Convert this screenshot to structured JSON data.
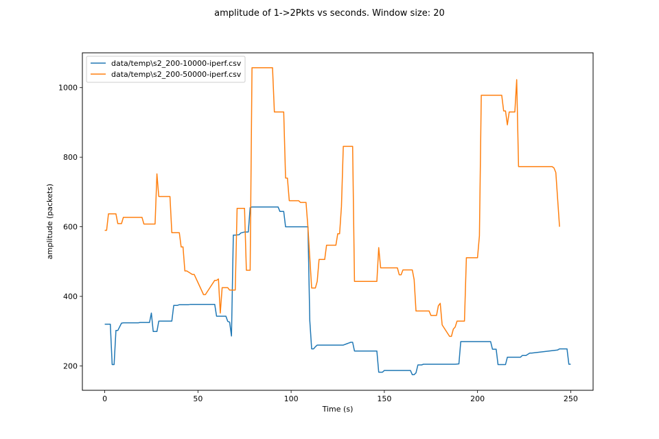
{
  "chart_data": {
    "type": "line",
    "title": "amplitude of 1->2Pkts vs seconds. Window size: 20",
    "xlabel": "Time (s)",
    "ylabel": "amplitude (packets)",
    "xlim": [
      -12,
      262
    ],
    "ylim": [
      130,
      1100
    ],
    "xticks": [
      0,
      50,
      100,
      150,
      200,
      250
    ],
    "yticks": [
      200,
      400,
      600,
      800,
      1000
    ],
    "legend_position": "top-left",
    "grid": false,
    "series": [
      {
        "name": "data/temp\\s2_200-10000-iperf.csv",
        "color": "#1f77b4",
        "x": [
          0,
          3,
          4,
          5,
          6,
          7,
          9,
          10,
          18,
          19,
          24,
          25,
          26,
          28,
          29,
          36,
          37,
          39,
          40,
          45,
          46,
          59,
          60,
          65,
          66,
          67,
          68,
          69,
          70,
          72,
          73,
          75,
          77,
          78,
          79,
          93,
          94,
          96,
          97,
          109,
          110,
          111,
          112,
          113,
          114,
          128,
          130,
          132,
          133,
          134,
          146,
          147,
          149,
          150,
          164,
          165,
          166,
          167,
          168,
          170,
          171,
          172,
          188,
          190,
          191,
          207,
          208,
          210,
          211,
          215,
          216,
          222,
          223,
          224,
          226,
          228,
          229,
          243,
          244,
          248,
          249,
          250
        ],
        "y": [
          320,
          320,
          204,
          204,
          302,
          302,
          323,
          324,
          324,
          325,
          325,
          352,
          299,
          299,
          329,
          329,
          374,
          374,
          376,
          376,
          377,
          377,
          343,
          343,
          328,
          326,
          286,
          576,
          576,
          577,
          582,
          585,
          585,
          655,
          657,
          657,
          644,
          644,
          600,
          600,
          330,
          249,
          249,
          255,
          260,
          260,
          264,
          268,
          268,
          243,
          243,
          182,
          182,
          187,
          187,
          175,
          175,
          180,
          203,
          203,
          205,
          205,
          205,
          206,
          270,
          270,
          248,
          248,
          204,
          204,
          225,
          225,
          225,
          230,
          230,
          237,
          237,
          246,
          249,
          249,
          205,
          205
        ]
      },
      {
        "name": "data/temp\\s2_200-50000-iperf.csv",
        "color": "#ff7f0e",
        "x": [
          0,
          1,
          2,
          6,
          7,
          9,
          10,
          20,
          21,
          27,
          28,
          29,
          35,
          36,
          40,
          41,
          42,
          43,
          44,
          47,
          48,
          53,
          54,
          59,
          60,
          61,
          62,
          63,
          66,
          67,
          68,
          70,
          71,
          75,
          76,
          78,
          79,
          90,
          91,
          96,
          97,
          98,
          99,
          104,
          105,
          108,
          109,
          111,
          113,
          114,
          115,
          118,
          119,
          124,
          125,
          126,
          127,
          128,
          133,
          134,
          146,
          147,
          148,
          157,
          158,
          159,
          160,
          165,
          166,
          167,
          174,
          175,
          178,
          179,
          180,
          181,
          185,
          186,
          187,
          188,
          189,
          193,
          194,
          200,
          201,
          202,
          213,
          214,
          215,
          216,
          217,
          220,
          221,
          222,
          240,
          241,
          242,
          244
        ],
        "y": [
          590,
          590,
          637,
          637,
          609,
          609,
          627,
          627,
          608,
          608,
          752,
          687,
          687,
          583,
          583,
          542,
          542,
          473,
          473,
          463,
          463,
          405,
          405,
          446,
          446,
          450,
          352,
          425,
          425,
          418,
          418,
          418,
          653,
          653,
          475,
          475,
          1057,
          1057,
          930,
          930,
          740,
          740,
          675,
          675,
          670,
          670,
          598,
          424,
          424,
          443,
          506,
          506,
          547,
          547,
          580,
          580,
          658,
          831,
          831,
          443,
          443,
          540,
          482,
          482,
          462,
          462,
          476,
          476,
          448,
          358,
          358,
          345,
          345,
          373,
          380,
          318,
          285,
          285,
          306,
          312,
          329,
          329,
          511,
          511,
          574,
          978,
          978,
          933,
          933,
          893,
          930,
          930,
          1023,
          773,
          773,
          769,
          756,
          600
        ]
      }
    ]
  }
}
